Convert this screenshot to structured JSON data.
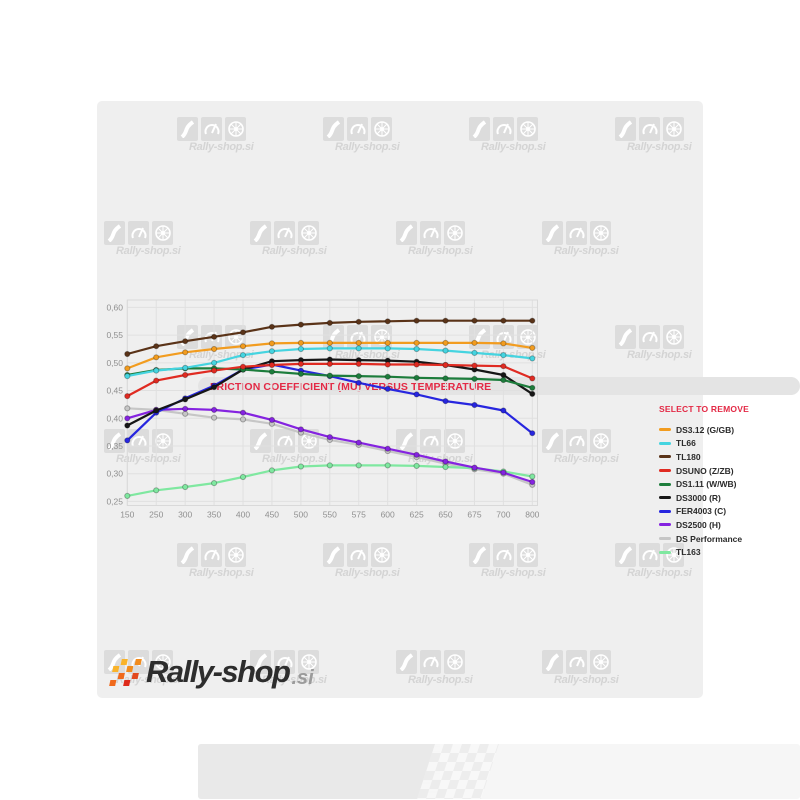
{
  "page": {
    "watermark_text": "Rally-shop.si"
  },
  "header": {
    "title": "FRICTION COEFFICIENT (MU) VERSUS TEMPERATURE"
  },
  "legend": {
    "title": "SELECT TO REMOVE"
  },
  "footer": {
    "logo_main": "Rally-shop",
    "logo_suffix": ".si"
  },
  "chart_data": {
    "type": "line",
    "title": "FRICTION COEFFICIENT (MU) VERSUS TEMPERATURE",
    "xlabel": "",
    "ylabel": "",
    "x_labels": [
      "150",
      "250",
      "300",
      "350",
      "400",
      "450",
      "500",
      "550",
      "575",
      "600",
      "625",
      "650",
      "675",
      "700",
      "800"
    ],
    "y_tick_labels": [
      "0,60",
      "0,55",
      "0,50",
      "0,45",
      "0,40",
      "0,35",
      "0,30",
      "0,25"
    ],
    "y_ticks": [
      0.6,
      0.55,
      0.5,
      0.45,
      0.4,
      0.35,
      0.3,
      0.25
    ],
    "ylim": [
      0.25,
      0.6
    ],
    "grid": true,
    "legend_position": "right",
    "series": [
      {
        "name": "DS3.12 (G/GB)",
        "color": "#f29c1f",
        "values": [
          0.49,
          0.51,
          0.519,
          0.525,
          0.53,
          0.535,
          0.536,
          0.536,
          0.536,
          0.536,
          0.536,
          0.536,
          0.536,
          0.535,
          0.527
        ]
      },
      {
        "name": "TL66",
        "color": "#45d4e0",
        "values": [
          0.476,
          0.486,
          0.491,
          0.5,
          0.514,
          0.521,
          0.525,
          0.526,
          0.526,
          0.526,
          0.525,
          0.522,
          0.518,
          0.514,
          0.508
        ]
      },
      {
        "name": "TL180",
        "color": "#5a3318",
        "values": [
          0.516,
          0.53,
          0.539,
          0.547,
          0.555,
          0.565,
          0.569,
          0.572,
          0.574,
          0.575,
          0.576,
          0.576,
          0.576,
          0.576,
          0.576
        ]
      },
      {
        "name": "DSUNO (Z/ZB)",
        "color": "#e02b22",
        "values": [
          0.44,
          0.468,
          0.478,
          0.486,
          0.493,
          0.496,
          0.498,
          0.498,
          0.498,
          0.497,
          0.497,
          0.496,
          0.495,
          0.494,
          0.472
        ]
      },
      {
        "name": "DS1.11 (W/WB)",
        "color": "#1d7d3c",
        "values": [
          0.478,
          0.487,
          0.49,
          0.49,
          0.488,
          0.484,
          0.48,
          0.477,
          0.476,
          0.475,
          0.473,
          0.472,
          0.471,
          0.469,
          0.455
        ]
      },
      {
        "name": "DS3000 (R)",
        "color": "#161616",
        "values": [
          0.387,
          0.414,
          0.434,
          0.456,
          0.488,
          0.503,
          0.505,
          0.506,
          0.505,
          0.504,
          0.502,
          0.496,
          0.488,
          0.478,
          0.444
        ]
      },
      {
        "name": "FER4003 (C)",
        "color": "#2726df",
        "values": [
          0.36,
          0.41,
          0.436,
          0.459,
          0.488,
          0.497,
          0.486,
          0.476,
          0.464,
          0.453,
          0.443,
          0.431,
          0.424,
          0.414,
          0.373
        ]
      },
      {
        "name": "DS2500 (H)",
        "color": "#8523e0",
        "values": [
          0.4,
          0.415,
          0.417,
          0.415,
          0.41,
          0.397,
          0.38,
          0.366,
          0.356,
          0.345,
          0.334,
          0.322,
          0.311,
          0.302,
          0.285
        ]
      },
      {
        "name": "DS Performance",
        "color": "#c6c6c6",
        "values": [
          0.418,
          0.415,
          0.408,
          0.401,
          0.398,
          0.39,
          0.374,
          0.361,
          0.352,
          0.341,
          0.33,
          0.318,
          0.308,
          0.3,
          0.28
        ]
      },
      {
        "name": "TL163",
        "color": "#7fe8a0",
        "values": [
          0.26,
          0.27,
          0.276,
          0.283,
          0.294,
          0.306,
          0.313,
          0.315,
          0.315,
          0.315,
          0.314,
          0.312,
          0.31,
          0.304,
          0.295
        ]
      }
    ]
  }
}
